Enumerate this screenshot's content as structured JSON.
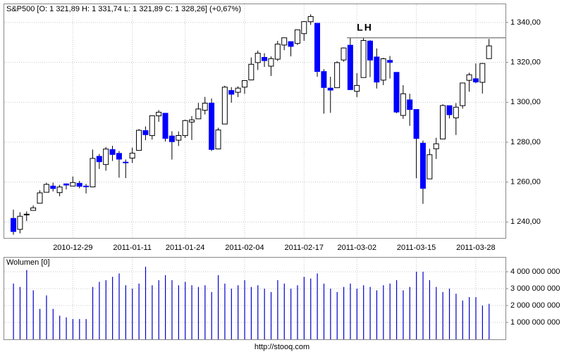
{
  "chart_data": [
    {
      "type": "candlestick",
      "title": "S&P500 [O: 1 321,89  H: 1 331,74  L: 1 321,89  C: 1 328,26] (+0,67%)",
      "categories": [
        null,
        null,
        null,
        null,
        null,
        null,
        null,
        null,
        null,
        "2010-12-29",
        null,
        null,
        null,
        null,
        null,
        null,
        null,
        null,
        "2011-01-11",
        null,
        null,
        null,
        null,
        null,
        null,
        null,
        "2011-01-24",
        null,
        null,
        null,
        null,
        null,
        null,
        null,
        null,
        "2011-02-04",
        null,
        null,
        null,
        null,
        null,
        null,
        null,
        null,
        "2011-02-17",
        null,
        null,
        null,
        null,
        null,
        null,
        null,
        "2011-03-02",
        null,
        null,
        null,
        null,
        null,
        null,
        null,
        null,
        "2011-03-15",
        null,
        null,
        null,
        null,
        null,
        null,
        null,
        null,
        "2011-03-28",
        null,
        null
      ],
      "open": [
        1241.8,
        1236.3,
        1243.6,
        1245.8,
        1249.4,
        1254.9,
        1258.0,
        1254.7,
        1259.1,
        1258.0,
        1259.4,
        1258.0,
        1257.6,
        1272.9,
        1268.8,
        1276.3,
        1274.4,
        1270.0,
        1272.0,
        1275.9,
        1285.8,
        1283.3,
        1293.2,
        1294.5,
        1283.1,
        1281.0,
        1283.3,
        1290.1,
        1291.7,
        1296.0,
        1299.6,
        1276.6,
        1289.1,
        1305.9,
        1305.0,
        1307.6,
        1311.2,
        1319.9,
        1322.5,
        1318.1,
        1321.6,
        1328.7,
        1330.4,
        1329.5,
        1334.4,
        1340.4,
        1339.6,
        1315.4,
        1307.1,
        1307.3,
        1321.2,
        1328.6,
        1305.5,
        1312.4,
        1330.7,
        1322.7,
        1311.1,
        1321.0,
        1315.0,
        1293.4,
        1301.2,
        1296.4,
        1279.5,
        1261.6,
        1276.7,
        1281.6,
        1298.3,
        1292.2,
        1298.3,
        1311.0,
        1311.8,
        1310.0,
        1321.89
      ],
      "high": [
        1246.2,
        1244.9,
        1245.3,
        1248.3,
        1255.9,
        1259.7,
        1259.7,
        1258.6,
        1259.3,
        1262.8,
        1260.6,
        1259.1,
        1276.3,
        1274.1,
        1277.6,
        1278.2,
        1275.6,
        1271.3,
        1277.3,
        1286.6,
        1287.9,
        1293.2,
        1296.1,
        1294.5,
        1285.5,
        1285.4,
        1291.3,
        1293.1,
        1299.7,
        1302.7,
        1301.9,
        1287.2,
        1308.3,
        1307.6,
        1308.0,
        1311.0,
        1322.5,
        1325.9,
        1324.6,
        1323.0,
        1330.8,
        1332.4,
        1330.4,
        1336.4,
        1340.7,
        1344.1,
        1339.6,
        1316.6,
        1312.8,
        1320.6,
        1327.5,
        1332.3,
        1314.6,
        1332.3,
        1331.1,
        1327.0,
        1322.3,
        1323.2,
        1315.0,
        1308.6,
        1304.3,
        1296.4,
        1280.8,
        1276.7,
        1282.2,
        1299.0,
        1298.4,
        1299.6,
        1309.7,
        1314.8,
        1319.5,
        1319.7,
        1331.74
      ],
      "low": [
        1233.6,
        1234.3,
        1240.5,
        1245.8,
        1249.4,
        1254.9,
        1255.3,
        1252.9,
        1256.3,
        1257.9,
        1256.9,
        1254.3,
        1257.6,
        1266.6,
        1265.7,
        1270.6,
        1262.2,
        1262.0,
        1269.6,
        1275.9,
        1281.0,
        1281.3,
        1290.2,
        1280.3,
        1271.3,
        1278.1,
        1282.1,
        1281.1,
        1291.7,
        1293.9,
        1275.6,
        1276.6,
        1289.1,
        1299.8,
        1302.6,
        1304.2,
        1311.2,
        1316.2,
        1317.7,
        1313.2,
        1320.7,
        1326.1,
        1323.0,
        1328.7,
        1330.8,
        1338.8,
        1312.8,
        1294.3,
        1294.7,
        1307.3,
        1320.4,
        1306.2,
        1302.6,
        1312.4,
        1312.6,
        1306.9,
        1308.6,
        1311.9,
        1294.5,
        1291.7,
        1288.2,
        1261.9,
        1249.1,
        1261.6,
        1271.6,
        1281.6,
        1291.9,
        1283.6,
        1296.8,
        1305.3,
        1309.5,
        1304.4,
        1321.89
      ],
      "close": [
        1235.23,
        1242.87,
        1243.91,
        1247.08,
        1254.6,
        1258.84,
        1256.77,
        1257.54,
        1258.51,
        1259.78,
        1257.88,
        1257.64,
        1271.87,
        1270.2,
        1276.56,
        1273.85,
        1271.5,
        1269.75,
        1274.48,
        1285.96,
        1283.76,
        1293.24,
        1295.02,
        1281.92,
        1280.26,
        1283.35,
        1290.84,
        1291.18,
        1296.63,
        1299.54,
        1276.34,
        1286.12,
        1307.59,
        1304.03,
        1307.1,
        1310.87,
        1319.05,
        1324.57,
        1320.88,
        1321.87,
        1329.15,
        1332.32,
        1328.01,
        1336.32,
        1340.43,
        1343.01,
        1315.44,
        1307.4,
        1306.1,
        1319.88,
        1327.22,
        1306.33,
        1308.44,
        1330.97,
        1321.15,
        1310.13,
        1321.82,
        1320.02,
        1295.11,
        1304.28,
        1296.39,
        1281.87,
        1256.88,
        1273.72,
        1279.21,
        1298.38,
        1293.77,
        1297.54,
        1309.66,
        1313.8,
        1310.19,
        1319.44,
        1328.26
      ],
      "up_color": "#ffffff",
      "down_color": "#0000ff",
      "ylim": [
        1232,
        1349.5
      ],
      "yticks": [
        {
          "value": 1240,
          "label": "1 240,00"
        },
        {
          "value": 1260,
          "label": "1 260,00"
        },
        {
          "value": 1280,
          "label": "1 280,00"
        },
        {
          "value": 1300,
          "label": "1 300,00"
        },
        {
          "value": 1320,
          "label": "1 320,00"
        },
        {
          "value": 1340,
          "label": "1 340,00"
        }
      ],
      "grid": true,
      "annotations": [
        {
          "text": "LH",
          "y": 1332.3
        }
      ]
    },
    {
      "type": "bar",
      "title": "Wolumen [0]",
      "color": "#0000cc",
      "values": [
        3300000000,
        3100000000,
        4100000000,
        2900000000,
        1800000000,
        2600000000,
        1800000000,
        1400000000,
        1300000000,
        1200000000,
        1200000000,
        1200000000,
        3100000000,
        3400000000,
        3500000000,
        3700000000,
        3900000000,
        3200000000,
        3000000000,
        3300000000,
        4300000000,
        3200000000,
        3500000000,
        3800000000,
        3500000000,
        3200000000,
        3400000000,
        3200000000,
        3100000000,
        3200000000,
        2800000000,
        3800000000,
        3300000000,
        3000000000,
        3200000000,
        3500000000,
        3100000000,
        3200000000,
        3000000000,
        2800000000,
        3500000000,
        3300000000,
        3000000000,
        3200000000,
        3700000000,
        3600000000,
        3900000000,
        3300000000,
        3000000000,
        2800000000,
        3100000000,
        3300000000,
        3000000000,
        3200000000,
        3100000000,
        2900000000,
        3200000000,
        3300000000,
        3500000000,
        2900000000,
        3100000000,
        4000000000,
        4000000000,
        3500000000,
        3100000000,
        2800000000,
        3000000000,
        2700000000,
        2300000000,
        2500000000,
        2500000000,
        2000000000,
        2100000000
      ],
      "ylim": [
        0,
        4875000000
      ],
      "yticks": [
        {
          "value": 1000000000,
          "label": "1 000 000 000"
        },
        {
          "value": 2000000000,
          "label": "2 000 000 000"
        },
        {
          "value": 3000000000,
          "label": "3 000 000 000"
        },
        {
          "value": 4000000000,
          "label": "4 000 000 000"
        }
      ],
      "grid": true
    }
  ],
  "source": "http://stooq.com"
}
